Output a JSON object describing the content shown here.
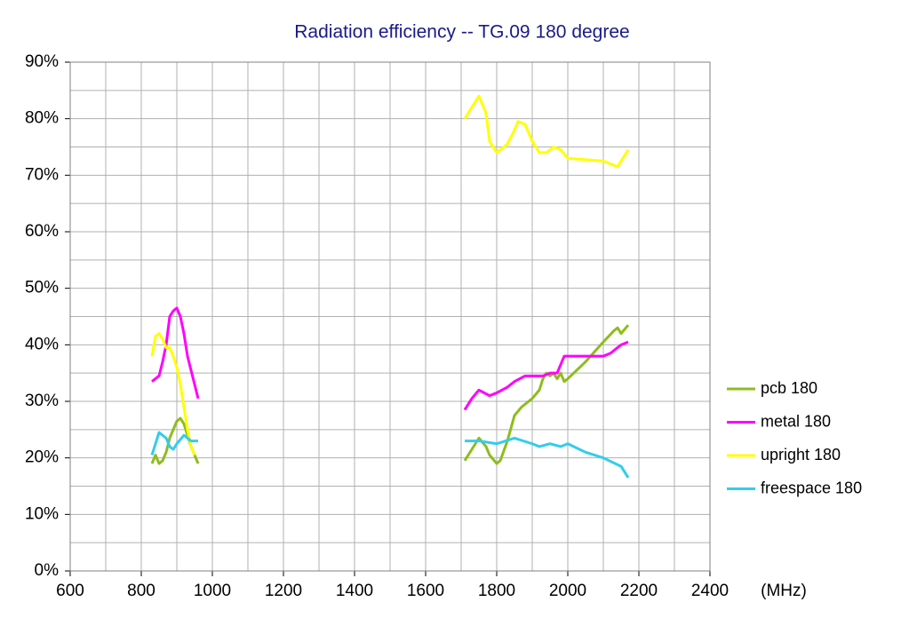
{
  "chart_data": {
    "type": "line",
    "title": "Radiation efficiency -- TG.09 180 degree",
    "x_label": "(MHz)",
    "xlim": [
      600,
      2400
    ],
    "xticks": [
      600,
      800,
      1000,
      1200,
      1400,
      1600,
      1800,
      2000,
      2200,
      2400
    ],
    "ylim": [
      0,
      90
    ],
    "yticks": [
      {
        "value": 0,
        "label": "0%"
      },
      {
        "value": 10,
        "label": "10%"
      },
      {
        "value": 20,
        "label": "20%"
      },
      {
        "value": 30,
        "label": "30%"
      },
      {
        "value": 40,
        "label": "40%"
      },
      {
        "value": 50,
        "label": "50%"
      },
      {
        "value": 60,
        "label": "60%"
      },
      {
        "value": 70,
        "label": "70%"
      },
      {
        "value": 80,
        "label": "80%"
      },
      {
        "value": 90,
        "label": "90%"
      }
    ],
    "grid": true,
    "minor_grid": true,
    "legend": "right",
    "series": [
      {
        "name": "pcb 180",
        "color": "#8fbc1e",
        "x": [
          830,
          840,
          850,
          860,
          870,
          880,
          890,
          900,
          910,
          920,
          930,
          940,
          960,
          null,
          1710,
          1730,
          1750,
          1770,
          1780,
          1800,
          1810,
          1830,
          1850,
          1870,
          1900,
          1920,
          1930,
          1940,
          1950,
          1960,
          1970,
          1980,
          1990,
          2000,
          2050,
          2100,
          2130,
          2140,
          2150,
          2170
        ],
        "values": [
          19,
          20.5,
          19,
          19.5,
          21,
          23.5,
          25,
          26.5,
          27,
          26,
          24,
          22,
          19,
          null,
          19.5,
          21.5,
          23.5,
          22,
          20.5,
          19,
          19.5,
          23,
          27.5,
          29,
          30.5,
          32,
          34,
          35,
          34.5,
          35,
          34,
          35,
          33.5,
          34,
          37,
          40.5,
          42.5,
          43,
          42,
          43.5
        ]
      },
      {
        "name": "metal 180",
        "color": "#ff00ff",
        "x": [
          830,
          850,
          860,
          870,
          880,
          890,
          900,
          910,
          920,
          930,
          960,
          null,
          1710,
          1730,
          1750,
          1780,
          1800,
          1830,
          1850,
          1880,
          1910,
          1930,
          1950,
          1970,
          1990,
          2000,
          2100,
          2120,
          2130,
          2150,
          2170
        ],
        "values": [
          33.5,
          34.5,
          37,
          40,
          45,
          46,
          46.5,
          45,
          42,
          38,
          30.5,
          null,
          28.5,
          30.5,
          32,
          31,
          31.5,
          32.5,
          33.5,
          34.5,
          34.5,
          34.5,
          35,
          35,
          38,
          38,
          38,
          38.5,
          39,
          40,
          40.5
        ]
      },
      {
        "name": "upright 180",
        "color": "#ffff00",
        "x": [
          830,
          840,
          850,
          860,
          870,
          880,
          890,
          900,
          910,
          920,
          930,
          940,
          950,
          null,
          1710,
          1730,
          1750,
          1770,
          1780,
          1800,
          1810,
          1830,
          1850,
          1860,
          1880,
          1900,
          1920,
          1940,
          1960,
          1980,
          2000,
          2100,
          2140,
          2170
        ],
        "values": [
          38,
          41.5,
          42,
          41,
          39.5,
          39.5,
          38,
          36,
          33,
          29,
          25,
          22,
          20.5,
          null,
          80,
          82,
          84,
          81,
          76,
          74,
          74.5,
          75.5,
          78,
          79.5,
          79,
          76,
          74,
          74,
          75,
          74.5,
          73,
          72.5,
          71.5,
          74.5
        ]
      },
      {
        "name": "freespace 180",
        "color": "#33ccee",
        "x": [
          830,
          850,
          870,
          880,
          890,
          900,
          920,
          940,
          960,
          null,
          1710,
          1750,
          1800,
          1850,
          1900,
          1920,
          1950,
          1980,
          2000,
          2050,
          2100,
          2150,
          2170
        ],
        "values": [
          20.5,
          24.5,
          23.5,
          22,
          21.5,
          22.5,
          24,
          23,
          23,
          null,
          23,
          23,
          22.5,
          23.5,
          22.5,
          22,
          22.5,
          22,
          22.5,
          21,
          20,
          18.5,
          16.5
        ]
      }
    ]
  }
}
